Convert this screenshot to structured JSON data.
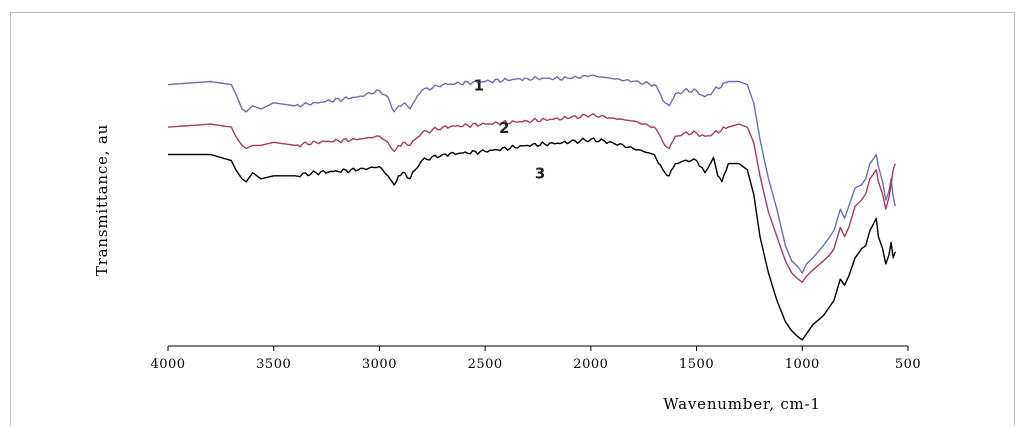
{
  "chart_data": {
    "type": "line",
    "title": "",
    "xlabel": "Wavenumber, cm-1",
    "ylabel": "Transmittance, au",
    "xlim": [
      4000,
      500
    ],
    "x_reversed": true,
    "xticks": [
      4000,
      3500,
      3000,
      2500,
      2000,
      1500,
      1000,
      500
    ],
    "ylim": [
      0,
      1
    ],
    "grid": false,
    "legend": "none",
    "series": [
      {
        "name": "1",
        "color": "#6b6fb0",
        "x": [
          4000,
          3800,
          3700,
          3680,
          3650,
          3630,
          3600,
          3560,
          3500,
          3400,
          3300,
          3100,
          3000,
          2960,
          2930,
          2910,
          2880,
          2855,
          2830,
          2800,
          2700,
          2500,
          2300,
          2100,
          2000,
          1900,
          1800,
          1700,
          1680,
          1650,
          1630,
          1600,
          1560,
          1500,
          1460,
          1420,
          1350,
          1300,
          1260,
          1230,
          1200,
          1160,
          1120,
          1080,
          1050,
          1020,
          1000,
          980,
          950,
          900,
          870,
          850,
          820,
          800,
          780,
          750,
          720,
          700,
          680,
          650,
          640,
          620,
          605,
          590,
          580,
          570,
          560
        ],
        "y": [
          0.86,
          0.87,
          0.86,
          0.83,
          0.78,
          0.77,
          0.79,
          0.78,
          0.8,
          0.79,
          0.8,
          0.82,
          0.84,
          0.82,
          0.77,
          0.79,
          0.8,
          0.78,
          0.81,
          0.84,
          0.86,
          0.87,
          0.88,
          0.88,
          0.89,
          0.88,
          0.87,
          0.86,
          0.84,
          0.8,
          0.79,
          0.83,
          0.84,
          0.84,
          0.82,
          0.84,
          0.87,
          0.87,
          0.86,
          0.8,
          0.68,
          0.55,
          0.45,
          0.33,
          0.28,
          0.26,
          0.24,
          0.27,
          0.29,
          0.33,
          0.36,
          0.38,
          0.45,
          0.42,
          0.46,
          0.52,
          0.53,
          0.55,
          0.6,
          0.63,
          0.59,
          0.54,
          0.48,
          0.51,
          0.55,
          0.49,
          0.46
        ]
      },
      {
        "name": "2",
        "color": "#a63a6a",
        "x": [
          4000,
          3800,
          3700,
          3680,
          3650,
          3630,
          3600,
          3560,
          3500,
          3400,
          3300,
          3100,
          3000,
          2960,
          2930,
          2910,
          2880,
          2855,
          2830,
          2800,
          2700,
          2500,
          2300,
          2100,
          2000,
          1900,
          1800,
          1700,
          1680,
          1650,
          1630,
          1600,
          1560,
          1500,
          1460,
          1420,
          1350,
          1300,
          1260,
          1230,
          1200,
          1160,
          1120,
          1080,
          1050,
          1020,
          1000,
          980,
          950,
          900,
          870,
          850,
          820,
          800,
          780,
          750,
          720,
          700,
          680,
          650,
          640,
          620,
          605,
          590,
          580,
          570,
          560
        ],
        "y": [
          0.72,
          0.73,
          0.72,
          0.69,
          0.66,
          0.65,
          0.66,
          0.66,
          0.67,
          0.66,
          0.67,
          0.68,
          0.69,
          0.67,
          0.64,
          0.66,
          0.67,
          0.66,
          0.68,
          0.7,
          0.72,
          0.73,
          0.74,
          0.75,
          0.76,
          0.75,
          0.74,
          0.72,
          0.7,
          0.66,
          0.65,
          0.69,
          0.7,
          0.7,
          0.69,
          0.7,
          0.72,
          0.73,
          0.72,
          0.67,
          0.56,
          0.44,
          0.36,
          0.28,
          0.24,
          0.22,
          0.21,
          0.23,
          0.25,
          0.28,
          0.3,
          0.32,
          0.39,
          0.36,
          0.39,
          0.46,
          0.48,
          0.5,
          0.55,
          0.58,
          0.54,
          0.5,
          0.45,
          0.49,
          0.53,
          0.58,
          0.6
        ]
      },
      {
        "name": "3",
        "color": "#000000",
        "x": [
          4000,
          3800,
          3700,
          3680,
          3650,
          3630,
          3600,
          3560,
          3500,
          3400,
          3300,
          3100,
          3000,
          2960,
          2930,
          2910,
          2880,
          2855,
          2830,
          2800,
          2700,
          2500,
          2300,
          2100,
          2000,
          1900,
          1800,
          1700,
          1680,
          1650,
          1630,
          1600,
          1560,
          1500,
          1460,
          1420,
          1400,
          1380,
          1350,
          1300,
          1260,
          1230,
          1200,
          1160,
          1120,
          1080,
          1050,
          1020,
          1000,
          980,
          950,
          900,
          870,
          850,
          820,
          800,
          780,
          750,
          720,
          700,
          680,
          650,
          640,
          620,
          605,
          590,
          580,
          570,
          560
        ],
        "y": [
          0.63,
          0.63,
          0.61,
          0.58,
          0.55,
          0.54,
          0.57,
          0.55,
          0.56,
          0.56,
          0.57,
          0.58,
          0.59,
          0.56,
          0.53,
          0.56,
          0.57,
          0.55,
          0.58,
          0.61,
          0.63,
          0.64,
          0.66,
          0.67,
          0.68,
          0.67,
          0.65,
          0.63,
          0.6,
          0.57,
          0.56,
          0.6,
          0.61,
          0.61,
          0.57,
          0.62,
          0.56,
          0.54,
          0.6,
          0.6,
          0.58,
          0.5,
          0.36,
          0.24,
          0.15,
          0.08,
          0.05,
          0.03,
          0.02,
          0.04,
          0.07,
          0.1,
          0.13,
          0.15,
          0.22,
          0.2,
          0.23,
          0.29,
          0.32,
          0.33,
          0.38,
          0.42,
          0.36,
          0.32,
          0.27,
          0.3,
          0.34,
          0.29,
          0.31
        ]
      }
    ],
    "series_labels": [
      {
        "text": "1",
        "x": 2530,
        "y": 0.86
      },
      {
        "text": "2",
        "x": 2410,
        "y": 0.72
      },
      {
        "text": "3",
        "x": 2240,
        "y": 0.57
      }
    ]
  }
}
